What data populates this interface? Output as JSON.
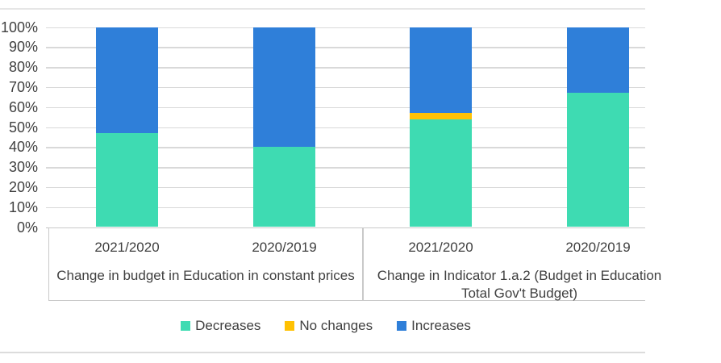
{
  "chart_data": {
    "type": "bar",
    "stacked": true,
    "units": "percent",
    "title": "",
    "xlabel": "",
    "ylabel": "",
    "ylim": [
      0,
      100
    ],
    "grid": true,
    "categories": [
      "2021/2020",
      "2020/2019",
      "2021/2020",
      "2020/2019"
    ],
    "groups": [
      {
        "label_lines": [
          "Change in budget in Education in constant prices"
        ],
        "category_indexes": [
          0,
          1
        ]
      },
      {
        "label_lines": [
          "Change in Indicator 1.a.2 (Budget in Education",
          "Total Gov't Budget)"
        ],
        "category_indexes": [
          2,
          3
        ]
      }
    ],
    "series": [
      {
        "name": "Decreases",
        "color": "#3edbb2",
        "values": [
          47,
          40,
          54,
          67
        ]
      },
      {
        "name": "No changes",
        "color": "#ffc103",
        "values": [
          0,
          0,
          3,
          0
        ]
      },
      {
        "name": "Increases",
        "color": "#2f7fd9",
        "values": [
          53,
          60,
          43,
          33
        ]
      }
    ],
    "y_axis": {
      "ticks": [
        "0%",
        "10%",
        "20%",
        "30%",
        "40%",
        "50%",
        "60%",
        "70%",
        "80%",
        "90%",
        "100%"
      ]
    },
    "legend": {
      "position": "bottom",
      "entries": [
        "Decreases",
        "No changes",
        "Increases"
      ]
    }
  },
  "colors": {
    "decreases": "#3edbb2",
    "no_changes": "#ffc103",
    "increases": "#2f7fd9",
    "gridline": "#d9d9d9",
    "axis_border": "#c9c9c9",
    "text": "#404040"
  }
}
